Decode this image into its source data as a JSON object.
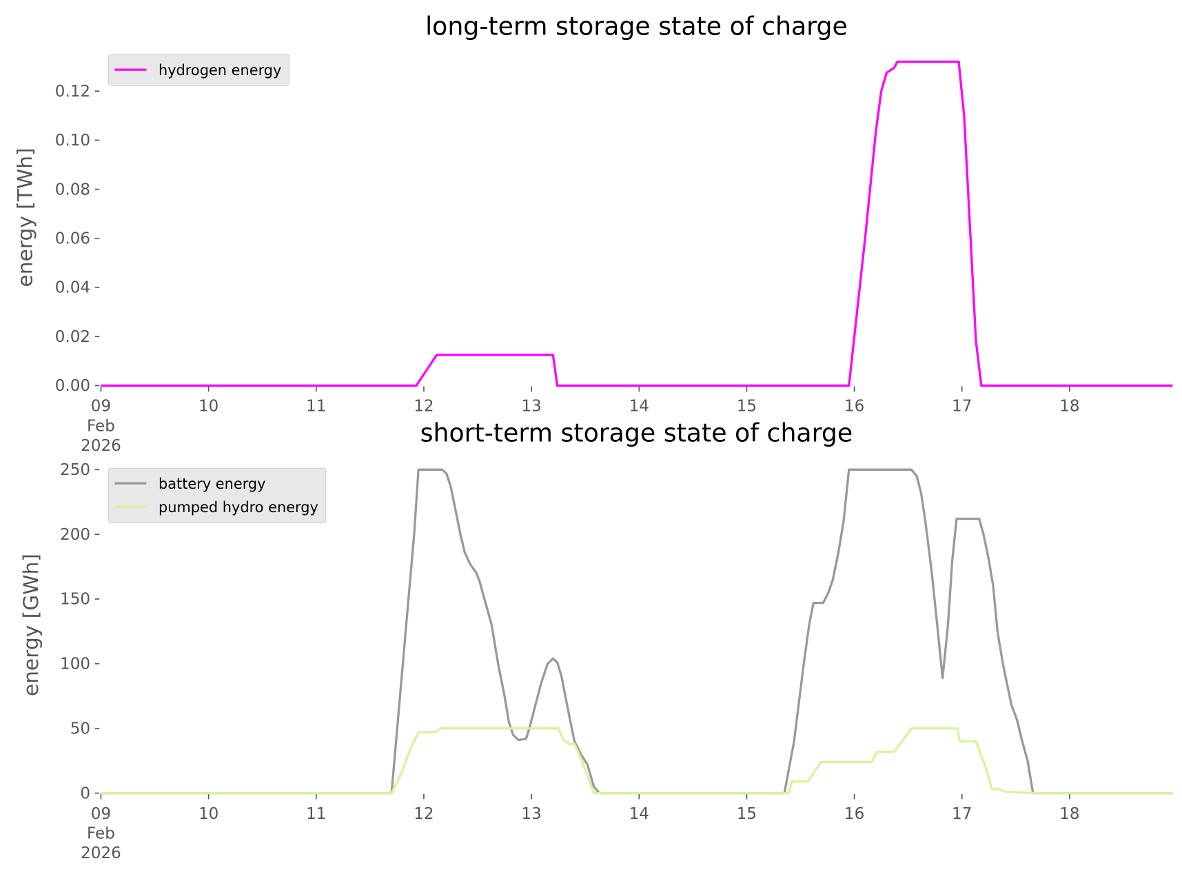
{
  "chart_data": [
    {
      "type": "line",
      "title": "long-term storage state of charge",
      "ylabel": "energy [TWh]",
      "xlim": [
        9,
        18.958
      ],
      "ylim": [
        0,
        0.138
      ],
      "xticks": [
        {
          "value": 9,
          "label": [
            "09",
            "Feb",
            "2026"
          ]
        },
        10,
        11,
        12,
        13,
        14,
        15,
        16,
        17,
        18
      ],
      "yticks": [
        {
          "value": 0,
          "label": "0.00"
        },
        {
          "value": 0.02,
          "label": "0.02"
        },
        {
          "value": 0.04,
          "label": "0.04"
        },
        {
          "value": 0.06,
          "label": "0.06"
        },
        {
          "value": 0.08,
          "label": "0.08"
        },
        {
          "value": 0.1,
          "label": "0.10"
        },
        {
          "value": 0.12,
          "label": "0.12"
        }
      ],
      "legend": "upper left",
      "series": [
        {
          "name": "hydrogen energy",
          "color": "#ff00ff",
          "x": [
            9,
            11.93,
            12.12,
            13.2,
            13.24,
            15.95,
            16.1,
            16.2,
            16.25,
            16.3,
            16.37,
            16.4,
            16.97,
            17.02,
            17.13,
            17.18,
            18.958
          ],
          "values": [
            0,
            0,
            0.0125,
            0.0125,
            0,
            0,
            0.06,
            0.1036,
            0.12,
            0.1275,
            0.1295,
            0.132,
            0.132,
            0.11,
            0.018,
            0,
            0
          ]
        }
      ]
    },
    {
      "type": "line",
      "title": "short-term storage state of charge",
      "ylabel": "energy [GWh]",
      "xlim": [
        9,
        18.958
      ],
      "ylim": [
        0,
        257
      ],
      "xticks": [
        {
          "value": 9,
          "label": [
            "09",
            "Feb",
            "2026"
          ]
        },
        10,
        11,
        12,
        13,
        14,
        15,
        16,
        17,
        18
      ],
      "yticks": [
        0,
        50,
        100,
        150,
        200,
        250
      ],
      "legend": "upper left",
      "series": [
        {
          "name": "battery energy",
          "color": "#999999",
          "x": [
            9,
            11.7,
            11.91,
            11.95,
            12.17,
            12.21,
            12.25,
            12.34,
            12.38,
            12.43,
            12.49,
            12.52,
            12.57,
            12.63,
            12.69,
            12.75,
            12.79,
            12.83,
            12.88,
            12.95,
            12.98,
            13.09,
            13.15,
            13.2,
            13.24,
            13.28,
            13.35,
            13.4,
            13.46,
            13.52,
            13.58,
            13.63,
            15.35,
            15.44,
            15.53,
            15.58,
            15.62,
            15.71,
            15.76,
            15.8,
            15.85,
            15.9,
            15.95,
            16.53,
            16.58,
            16.62,
            16.66,
            16.72,
            16.77,
            16.82,
            16.87,
            16.91,
            16.95,
            17.16,
            17.2,
            17.25,
            17.29,
            17.33,
            17.38,
            17.43,
            17.46,
            17.51,
            17.56,
            17.61,
            17.66,
            18.958
          ],
          "values": [
            0,
            0,
            200,
            250,
            250,
            247,
            237,
            200,
            186,
            177,
            170,
            163,
            148,
            130,
            100,
            75,
            55,
            45,
            41,
            42,
            50,
            85,
            100,
            104,
            101,
            90,
            60,
            40,
            30,
            22,
            5,
            0,
            0,
            40,
            100,
            130,
            147,
            147,
            155,
            165,
            185,
            210,
            250,
            250,
            245,
            232,
            210,
            170,
            130,
            89,
            130,
            180,
            212,
            212,
            200,
            180,
            160,
            125,
            100,
            80,
            68,
            57,
            40,
            25,
            0,
            0
          ]
        },
        {
          "name": "pumped hydro energy",
          "color": "#d4f59a",
          "x": [
            9,
            11.7,
            11.79,
            11.87,
            11.95,
            12.11,
            12.15,
            13.25,
            13.3,
            13.35,
            13.4,
            13.47,
            13.58,
            15.39,
            15.42,
            15.57,
            15.64,
            15.69,
            16.16,
            16.21,
            16.37,
            16.46,
            16.53,
            16.96,
            16.98,
            17.13,
            17.22,
            17.28,
            17.35,
            17.41,
            17.69,
            18.958
          ],
          "values": [
            0,
            0,
            15,
            33,
            47,
            47,
            50,
            50,
            41,
            38,
            38,
            25,
            0,
            0,
            9,
            9,
            18,
            24,
            24,
            32,
            32,
            42,
            50,
            50,
            40,
            40,
            20,
            3,
            3,
            1,
            0,
            0
          ]
        }
      ]
    }
  ]
}
